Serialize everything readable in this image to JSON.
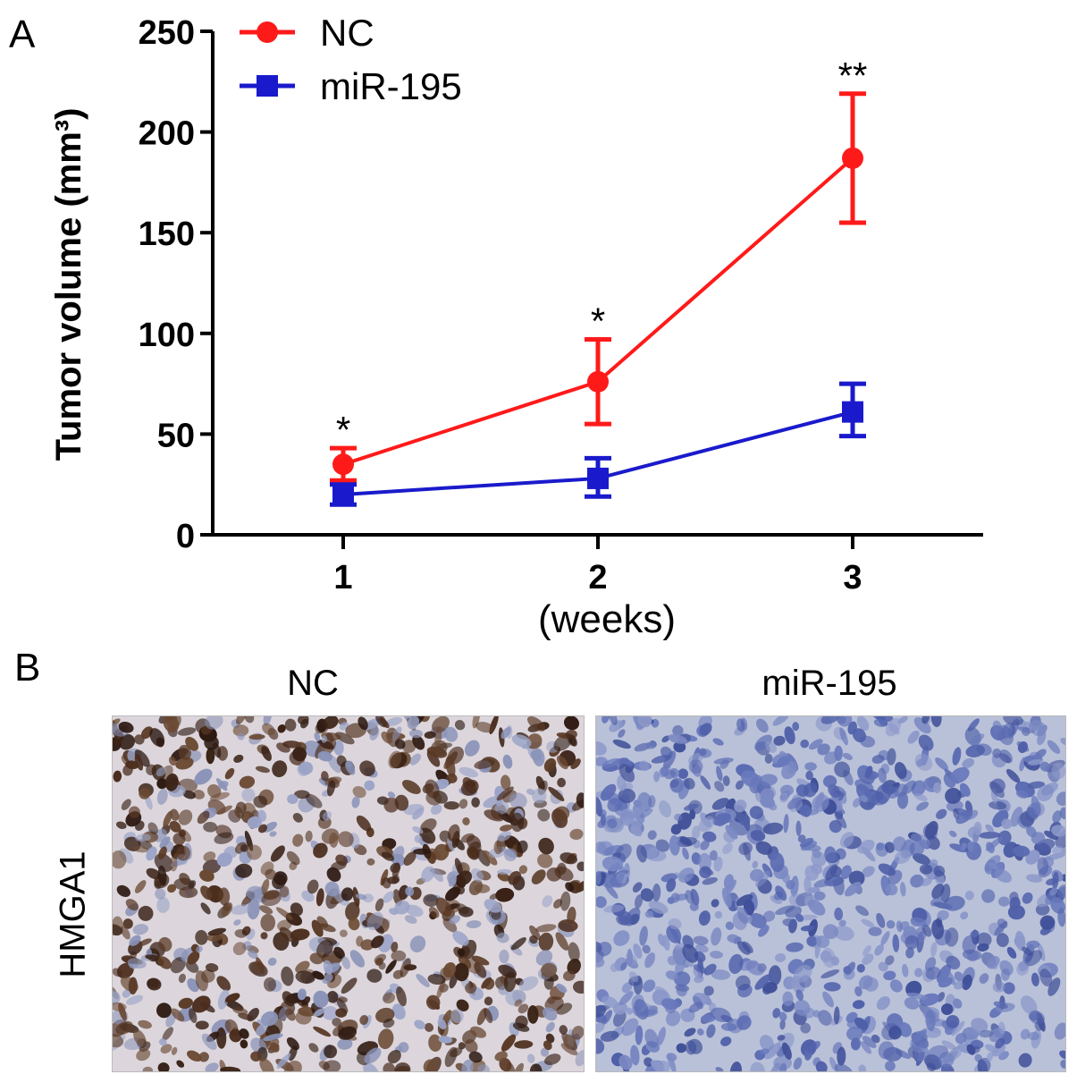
{
  "panels": {
    "a_label": "A",
    "b_label": "B"
  },
  "chart_data": {
    "type": "line",
    "ylabel": "Tumor volume (mm³)",
    "xlabel": "(weeks)",
    "categories": [
      "1",
      "2",
      "3"
    ],
    "ylim": [
      0,
      250
    ],
    "yticks": [
      0,
      50,
      100,
      150,
      200,
      250
    ],
    "grid": false,
    "legend_position": "top-left",
    "series": [
      {
        "name": "NC",
        "color": "#ff1a1a",
        "marker": "circle",
        "values": [
          35,
          76,
          187
        ],
        "err_low": [
          27,
          55,
          155
        ],
        "err_high": [
          43,
          97,
          219
        ]
      },
      {
        "name": "miR-195",
        "color": "#1a1acc",
        "marker": "square",
        "values": [
          20,
          28,
          61
        ],
        "err_low": [
          15,
          19,
          49
        ],
        "err_high": [
          25,
          38,
          75
        ]
      }
    ],
    "annotations": [
      "*",
      "*",
      "**"
    ]
  },
  "micrographs": {
    "row_label": "HMGA1",
    "columns": [
      "NC",
      "miR-195"
    ]
  }
}
